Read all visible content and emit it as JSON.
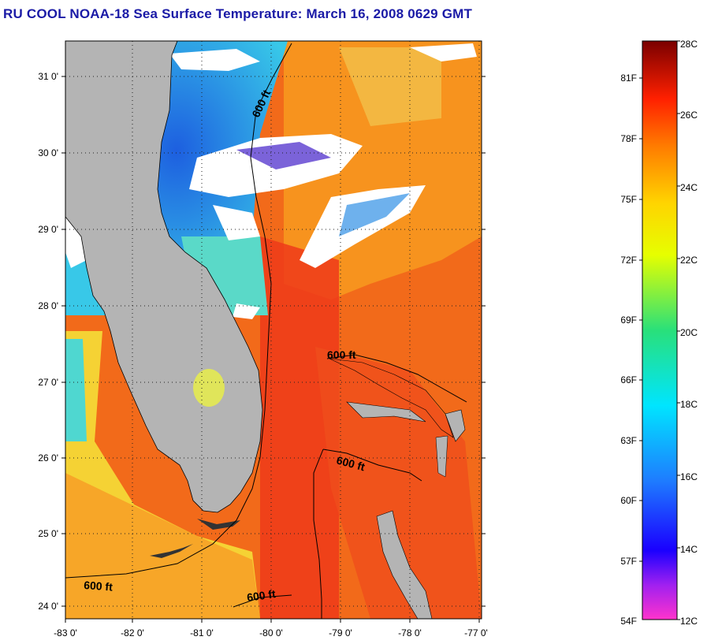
{
  "title": "RU COOL  NOAA-18  Sea Surface Temperature:  March 16, 2008 0629 GMT",
  "map": {
    "lat_ticks": [
      "31 0'",
      "30 0'",
      "29 0'",
      "28 0'",
      "27 0'",
      "26 0'",
      "25 0'",
      "24 0'"
    ],
    "lon_ticks": [
      "-83 0'",
      "-82 0'",
      "-81 0'",
      "-80 0'",
      "-79 0'",
      "-78 0'",
      "-77 0'"
    ],
    "contour_labels": [
      "600 ft",
      "600 ft",
      "600 ft",
      "600 ft",
      "600 ft"
    ],
    "colors": {
      "land": "#b4b4b4",
      "cloud": "#ffffff",
      "gulf_stream": "#ee3a1a"
    }
  },
  "colorbar": {
    "fahrenheit_labels": [
      "81F",
      "78F",
      "75F",
      "72F",
      "69F",
      "66F",
      "63F",
      "60F",
      "57F",
      "54F"
    ],
    "celsius_labels": [
      "28C",
      "26C",
      "24C",
      "22C",
      "20C",
      "18C",
      "16C",
      "14C",
      "12C"
    ],
    "range_c": [
      12,
      28
    ]
  }
}
